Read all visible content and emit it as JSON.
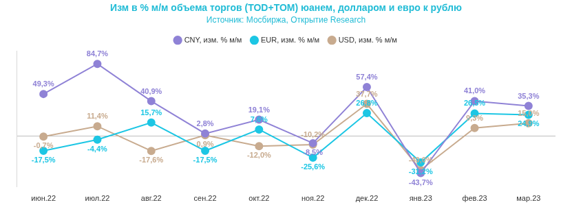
{
  "chart_data": {
    "type": "line",
    "title": "Изм в % м/м объема торгов (TOD+TOM) юанем, долларом и евро к рублю",
    "subtitle": "Источник: Мосбиржа, Открытие Research",
    "categories": [
      "июн.22",
      "июл.22",
      "авг.22",
      "сен.22",
      "окт.22",
      "ноя.22",
      "дек.22",
      "янв.23",
      "фев.23",
      "мар.23"
    ],
    "series": [
      {
        "name": "CNY, изм. % м/м",
        "color": "#8f82d6",
        "marker": "circle",
        "values": [
          49.3,
          84.7,
          40.9,
          2.8,
          19.1,
          -8.5,
          57.4,
          -43.7,
          41.0,
          35.3
        ],
        "value_labels": [
          "49,3%",
          "84,7%",
          "40,9%",
          "2,8%",
          "19,1%",
          "-8,5%",
          "57,4%",
          "-43,7%",
          "41,0%",
          "35,3%"
        ]
      },
      {
        "name": "EUR, изм. % м/м",
        "color": "#1cc6e4",
        "marker": "circle",
        "values": [
          -17.5,
          -4.4,
          15.7,
          -17.5,
          7.6,
          -25.6,
          26.8,
          -31.2,
          26.5,
          24.9
        ],
        "value_labels": [
          "-17,5%",
          "-4,4%",
          "15,7%",
          "-17,5%",
          "7,6%",
          "-25,6%",
          "26,8%",
          "-31,2%",
          "26,5%",
          "24,9%"
        ]
      },
      {
        "name": "USD, изм. % м/м",
        "color": "#c8ab8f",
        "marker": "circle",
        "values": [
          -0.7,
          11.4,
          -17.6,
          0.9,
          -12.0,
          -10.2,
          37.7,
          -40.0,
          9.3,
          15.0
        ],
        "value_labels": [
          "-0,7%",
          "11,4%",
          "-17,6%",
          "0,9%",
          "-12,0%",
          "-10,2%",
          "37,7%",
          "-40,0%",
          "9,3%",
          "15,0%"
        ]
      }
    ],
    "ylim": [
      -60,
      100
    ],
    "yticks": [
      0
    ],
    "grid": true,
    "legend": "top",
    "data_labels": true,
    "tick_labels": "x"
  }
}
